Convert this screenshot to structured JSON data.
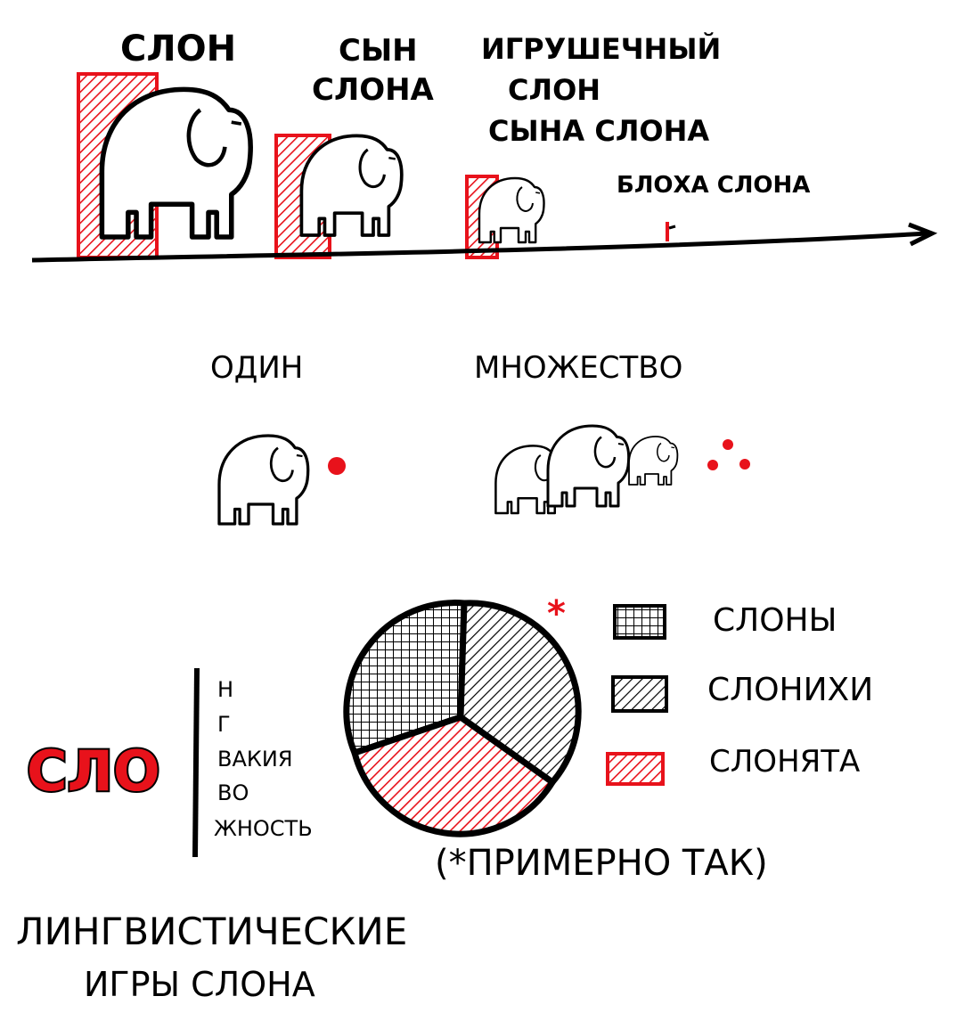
{
  "colors": {
    "ink": "#000000",
    "accent": "#e8121b",
    "paper": "#ffffff"
  },
  "size_chart": {
    "labels": [
      "СЛОН",
      "СЫН СЛОНА",
      "ИГРУШЕЧНЫЙ СЛОН СЫНА СЛОНА",
      "БЛОХА СЛОНА"
    ],
    "relative_size": [
      1.0,
      0.65,
      0.37,
      0.06
    ]
  },
  "count": {
    "one_label": "ОДИН",
    "many_label": "МНОЖЕСТВО",
    "one_dots": 1,
    "many_dots": 3
  },
  "wordplay": {
    "prefix": "СЛО",
    "suffixes": [
      "Н",
      "Г",
      "ВАКИЯ",
      "ВО",
      "ЖНОСТЬ"
    ]
  },
  "pie": {
    "asterisk": "*",
    "note": "(*ПРИМЕРНО ТАК)",
    "legend": [
      {
        "label": "СЛОНЫ",
        "pattern": "grid",
        "share": 0.33
      },
      {
        "label": "СЛОНИХИ",
        "pattern": "diagonal",
        "share": 0.33
      },
      {
        "label": "СЛОНЯТА",
        "pattern": "diagonal-red",
        "share": 0.34
      }
    ]
  },
  "caption": {
    "line1": "ЛИНГВИСТИЧЕСКИЕ",
    "line2": "ИГРЫ СЛОНА"
  }
}
